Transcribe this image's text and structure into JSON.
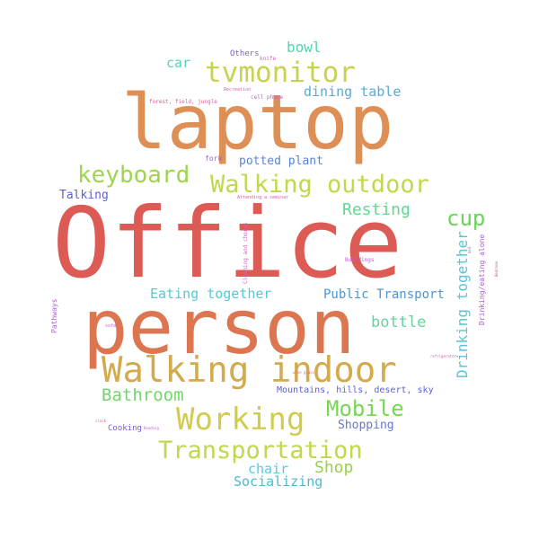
{
  "words": {
    "office": {
      "text": "Office",
      "color": "#dd5b55"
    },
    "laptop": {
      "text": "laptop",
      "color": "#dd8f55"
    },
    "person": {
      "text": "person",
      "color": "#dc7650"
    },
    "walking_indoor": {
      "text": "Walking indoor",
      "color": "#d3aa4c"
    },
    "tvmonitor": {
      "text": "tvmonitor",
      "color": "#c9d24e"
    },
    "walking_outdoor": {
      "text": "Walking outdoor",
      "color": "#c0d84c"
    },
    "keyboard": {
      "text": "keyboard",
      "color": "#9fd450"
    },
    "working": {
      "text": "Working",
      "color": "#d2cc4e"
    },
    "transportation": {
      "text": "Transportation",
      "color": "#bfd84c"
    },
    "mobile": {
      "text": "Mobile",
      "color": "#78d653"
    },
    "cup": {
      "text": "cup",
      "color": "#68d556"
    },
    "bathroom": {
      "text": "Bathroom",
      "color": "#76d36b"
    },
    "resting": {
      "text": "Resting",
      "color": "#62d78f"
    },
    "shop": {
      "text": "Shop",
      "color": "#9bd04e"
    },
    "bottle": {
      "text": "bottle",
      "color": "#5fd69b"
    },
    "bowl": {
      "text": "bowl",
      "color": "#52d4b0"
    },
    "car": {
      "text": "car",
      "color": "#54d4b7"
    },
    "dining_table": {
      "text": "dining table",
      "color": "#5aa9d6"
    },
    "potted_plant": {
      "text": "potted plant",
      "color": "#5886d6"
    },
    "eating_together": {
      "text": "Eating together",
      "color": "#55c9d4"
    },
    "public_transport": {
      "text": "Public Transport",
      "color": "#4f96d0"
    },
    "drinking_together": {
      "text": "Drinking together",
      "color": "#55c7d3"
    },
    "socializing": {
      "text": "Socializing",
      "color": "#4fb9d3"
    },
    "chair": {
      "text": "chair",
      "color": "#52cce0"
    },
    "talking": {
      "text": "Talking",
      "color": "#5b5fd3"
    },
    "mountains": {
      "text": "Mountains, hills, desert, sky",
      "color": "#5c62cf"
    },
    "shopping": {
      "text": "Shopping",
      "color": "#6577d0"
    },
    "cooking": {
      "text": "Cooking",
      "color": "#7a5ed1"
    },
    "others": {
      "text": "Others",
      "color": "#7b5ed3"
    },
    "drinking_eating_alone": {
      "text": "Drinking/eating alone",
      "color": "#a361d6"
    },
    "pathways": {
      "text": "Pathways",
      "color": "#b05fd4"
    },
    "fork": {
      "text": "fork",
      "color": "#9263d4"
    },
    "cleaning": {
      "text": "Cleaning and chores",
      "color": "#d45fc4"
    },
    "buildings": {
      "text": "Buildings",
      "color": "#c259d4"
    },
    "knife": {
      "text": "knife",
      "color": "#cf5fc6"
    },
    "cell_phone": {
      "text": "cell phone",
      "color": "#c25bd1"
    },
    "recreation": {
      "text": "Recreation",
      "color": "#d15fb2"
    },
    "forest": {
      "text": "forest, field, jungle",
      "color": "#d45f9c"
    },
    "attending_seminar": {
      "text": "Attending a seminar",
      "color": "#d45fae"
    },
    "sofa": {
      "text": "sofa",
      "color": "#c85fd4"
    },
    "refrigerator": {
      "text": "refrigerator",
      "color": "#d45fa2"
    },
    "wine_glass": {
      "text": "wine glass",
      "color": "#d96a90"
    },
    "reading": {
      "text": "Reading",
      "color": "#cc5fd1"
    },
    "clock": {
      "text": "clock",
      "color": "#d45f8a"
    },
    "bed": {
      "text": "bed",
      "color": "#c25fd4"
    },
    "bedroom": {
      "text": "Bedroom",
      "color": "#d4538c"
    }
  }
}
